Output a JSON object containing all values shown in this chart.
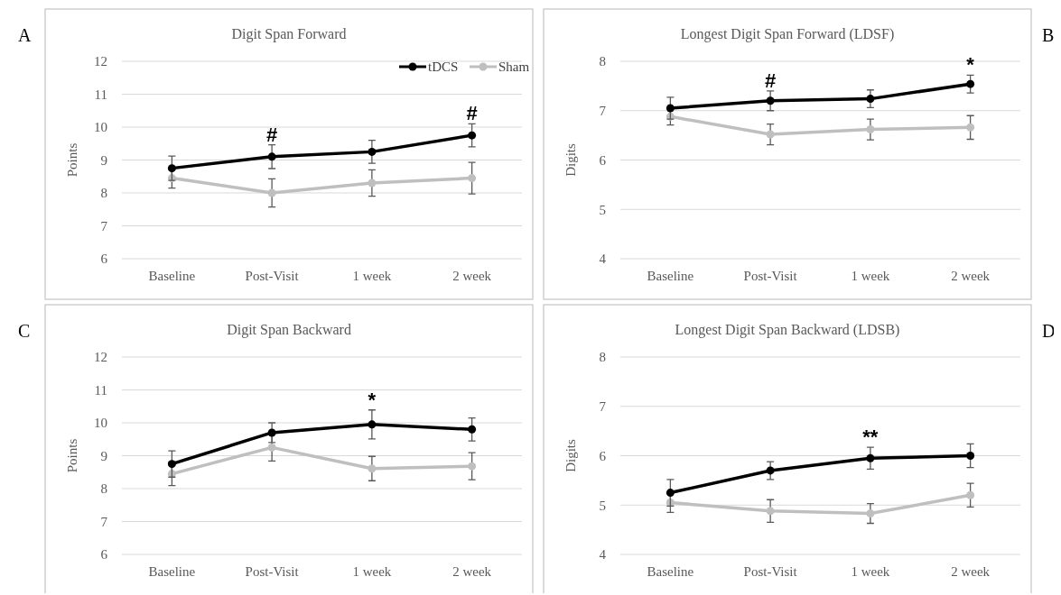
{
  "chart_data": [
    {
      "type": "line",
      "title": "Digit Span Forward",
      "ylabel": "Points",
      "categories": [
        "Baseline",
        "Post-Visit",
        "1 week",
        "2 week"
      ],
      "ylim": [
        6,
        12
      ],
      "yticks": [
        6,
        7,
        8,
        9,
        10,
        11,
        12
      ],
      "grid": "y",
      "legend": "top right",
      "marker": "circle",
      "series": [
        {
          "name": "tDCS",
          "color": "#000000",
          "values": [
            8.75,
            9.1,
            9.25,
            9.75
          ],
          "errors": [
            0.37,
            0.36,
            0.35,
            0.35
          ]
        },
        {
          "name": "Sham",
          "color": "#bfbfbf",
          "values": [
            8.45,
            8.0,
            8.3,
            8.45
          ],
          "errors": [
            0.3,
            0.43,
            0.4,
            0.48
          ]
        }
      ],
      "annotations": [
        "A",
        {
          "text": "#",
          "x": "Post-Visit",
          "y": 9.1
        },
        {
          "text": "#",
          "x": "2 week",
          "y": 9.75
        }
      ]
    },
    {
      "type": "line",
      "title": "Longest Digit Span Forward (LDSF)",
      "ylabel": "Digits",
      "categories": [
        "Baseline",
        "Post-Visit",
        "1 week",
        "2 week"
      ],
      "ylim": [
        4,
        8
      ],
      "yticks": [
        4,
        5,
        6,
        7,
        8
      ],
      "grid": "y",
      "marker": "circle",
      "series": [
        {
          "color": "#000000",
          "values": [
            7.05,
            7.2,
            7.24,
            7.54
          ],
          "errors": [
            0.22,
            0.2,
            0.18,
            0.18
          ]
        },
        {
          "color": "#bfbfbf",
          "values": [
            6.88,
            6.52,
            6.62,
            6.66
          ],
          "errors": [
            0.17,
            0.21,
            0.21,
            0.24
          ]
        }
      ],
      "annotations": [
        "B",
        {
          "text": "#",
          "x": "Post-Visit",
          "y": 7.2
        },
        {
          "text": "*",
          "x": "2 week",
          "y": 7.54
        }
      ]
    },
    {
      "type": "line",
      "title": "Digit Span Backward",
      "ylabel": "Points",
      "categories": [
        "Baseline",
        "Post-Visit",
        "1 week",
        "2 week"
      ],
      "ylim": [
        6,
        12
      ],
      "yticks": [
        6,
        7,
        8,
        9,
        10,
        11,
        12
      ],
      "grid": "y",
      "marker": "circle",
      "series": [
        {
          "color": "#000000",
          "values": [
            8.75,
            9.7,
            9.95,
            9.8
          ],
          "errors": [
            0.4,
            0.3,
            0.44,
            0.35
          ]
        },
        {
          "color": "#bfbfbf",
          "values": [
            8.45,
            9.25,
            8.61,
            8.68
          ],
          "errors": [
            0.36,
            0.41,
            0.37,
            0.41
          ]
        }
      ],
      "annotations": [
        "C",
        {
          "text": "*",
          "x": "1 week",
          "y": 9.95
        }
      ]
    },
    {
      "type": "line",
      "title": "Longest Digit Span Backward (LDSB)",
      "ylabel": "Digits",
      "categories": [
        "Baseline",
        "Post-Visit",
        "1 week",
        "2 week"
      ],
      "ylim": [
        4,
        8
      ],
      "yticks": [
        4,
        5,
        6,
        7,
        8
      ],
      "grid": "y",
      "marker": "circle",
      "series": [
        {
          "color": "#000000",
          "values": [
            5.25,
            5.7,
            5.95,
            6.0
          ],
          "errors": [
            0.27,
            0.18,
            0.22,
            0.24
          ]
        },
        {
          "color": "#bfbfbf",
          "values": [
            5.05,
            4.88,
            4.83,
            5.2
          ],
          "errors": [
            0.2,
            0.23,
            0.2,
            0.24
          ]
        }
      ],
      "annotations": [
        "D",
        {
          "text": "**",
          "x": "1 week",
          "y": 5.95
        }
      ]
    }
  ]
}
